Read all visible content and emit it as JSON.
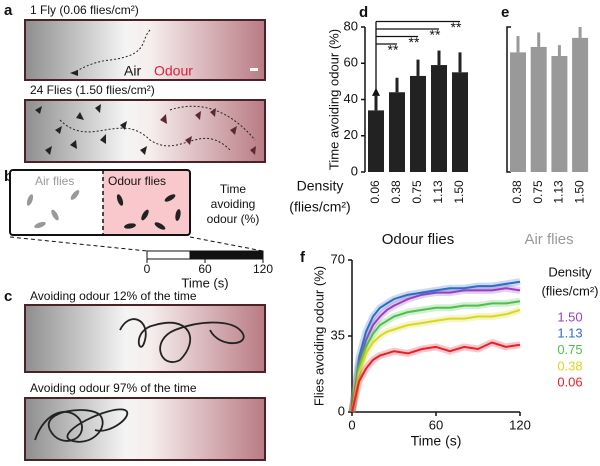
{
  "panels": {
    "a": {
      "letter": "a",
      "top_caption": "1 Fly (0.06 flies/cm²)",
      "air": "Air",
      "odour": "Odour",
      "bottom_caption": "24 Flies (1.50 flies/cm²)"
    },
    "b": {
      "letter": "b",
      "air_flies": "Air flies",
      "odour_flies": "Odour flies",
      "time_avoiding": "Time avoiding odour (%)",
      "timeline_xlim": [
        0,
        120
      ],
      "timeline_ticks": [
        0,
        60,
        120
      ],
      "timeline_label": "Time (s)"
    },
    "c": {
      "letter": "c",
      "top_caption": "Avoiding odour 12% of the time",
      "bottom_caption": "Avoiding odour 97% of the time"
    }
  },
  "chart_data": [
    {
      "type": "bar",
      "letter": "d",
      "ylabel": "Time avoiding odour (%)",
      "density_label": "Density",
      "density_unit": "(flies/cm²)",
      "xlabel": "Odour flies",
      "categories": [
        "0.06",
        "0.38",
        "0.75",
        "1.13",
        "1.50"
      ],
      "values": [
        34,
        44,
        53,
        59,
        55
      ],
      "errors": [
        8,
        8,
        9,
        8,
        11
      ],
      "color": "#222222",
      "ylim": [
        0,
        80
      ],
      "yticks": [
        0,
        20,
        40,
        60,
        80
      ],
      "significance": [
        "**",
        "**",
        "**",
        "**"
      ]
    },
    {
      "type": "bar",
      "letter": "e",
      "xlabel": "Air flies",
      "categories": [
        "0.38",
        "0.75",
        "1.13",
        "1.50"
      ],
      "values": [
        66,
        69,
        64,
        74
      ],
      "errors": [
        9,
        8,
        6,
        6
      ],
      "color": "#999999",
      "ylim": [
        0,
        80
      ]
    },
    {
      "type": "line",
      "letter": "f",
      "ylabel": "Flies avoiding odour (%)",
      "xlabel": "Time (s)",
      "legend_title": "Density",
      "legend_unit": "(flies/cm²)",
      "x": [
        0,
        5,
        10,
        15,
        20,
        25,
        30,
        40,
        50,
        60,
        70,
        80,
        90,
        100,
        110,
        120
      ],
      "xlim": [
        0,
        120
      ],
      "xticks": [
        0,
        60,
        120
      ],
      "ylim": [
        0,
        70
      ],
      "yticks": [
        0,
        35,
        70
      ],
      "series": [
        {
          "name": "1.50",
          "color": "#9b3fbf",
          "values": [
            0,
            22,
            33,
            40,
            44,
            47,
            49,
            52,
            54,
            55,
            55,
            56,
            56,
            56,
            57,
            56
          ]
        },
        {
          "name": "1.13",
          "color": "#2f6cc4",
          "values": [
            0,
            25,
            37,
            44,
            48,
            50,
            52,
            54,
            55,
            56,
            57,
            57,
            58,
            58,
            59,
            60
          ]
        },
        {
          "name": "0.75",
          "color": "#4cc04c",
          "values": [
            0,
            20,
            30,
            36,
            40,
            42,
            44,
            46,
            47,
            48,
            48,
            49,
            49,
            50,
            50,
            51
          ]
        },
        {
          "name": "0.38",
          "color": "#d8d820",
          "values": [
            0,
            18,
            27,
            32,
            35,
            37,
            38,
            40,
            41,
            42,
            43,
            43,
            44,
            44,
            45,
            47
          ]
        },
        {
          "name": "0.06",
          "color": "#e8202a",
          "values": [
            0,
            14,
            20,
            24,
            26,
            27,
            28,
            27,
            29,
            30,
            28,
            30,
            29,
            32,
            30,
            31
          ]
        }
      ]
    }
  ]
}
